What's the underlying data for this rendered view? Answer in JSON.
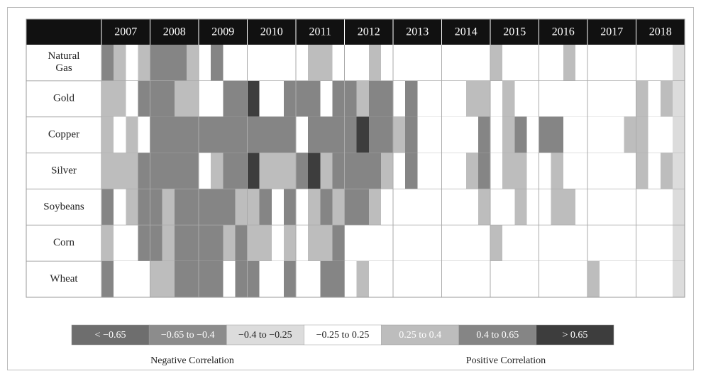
{
  "chart_data": {
    "type": "heatmap",
    "columns": [
      "2007",
      "2008",
      "2009",
      "2010",
      "2011",
      "2012",
      "2013",
      "2014",
      "2015",
      "2016",
      "2017",
      "2018"
    ],
    "series": [
      {
        "name": "Natural Gas",
        "values": [
          5,
          4,
          3,
          4,
          5,
          5,
          5,
          4,
          3,
          5,
          3,
          3,
          3,
          3,
          3,
          3,
          3,
          4,
          4,
          3,
          3,
          3,
          4,
          3,
          3,
          3,
          3,
          3,
          3,
          3,
          3,
          3,
          4,
          3,
          3,
          3,
          3,
          3,
          4,
          3,
          3,
          3,
          3,
          3,
          3,
          3,
          3,
          2
        ]
      },
      {
        "name": "Gold",
        "values": [
          4,
          4,
          3,
          5,
          5,
          5,
          4,
          4,
          3,
          3,
          5,
          5,
          6,
          3,
          3,
          5,
          5,
          5,
          3,
          5,
          5,
          4,
          5,
          5,
          3,
          5,
          3,
          3,
          3,
          3,
          4,
          4,
          3,
          4,
          3,
          3,
          3,
          3,
          3,
          3,
          3,
          3,
          3,
          3,
          4,
          3,
          4,
          2
        ]
      },
      {
        "name": "Copper",
        "values": [
          4,
          3,
          4,
          3,
          5,
          5,
          5,
          5,
          5,
          5,
          5,
          5,
          5,
          5,
          5,
          5,
          3,
          5,
          5,
          5,
          5,
          6,
          5,
          5,
          4,
          5,
          3,
          3,
          3,
          3,
          3,
          5,
          3,
          4,
          5,
          3,
          5,
          5,
          3,
          3,
          3,
          3,
          3,
          4,
          4,
          3,
          3,
          2
        ]
      },
      {
        "name": "Silver",
        "values": [
          4,
          4,
          4,
          5,
          5,
          5,
          5,
          5,
          3,
          4,
          5,
          5,
          6,
          4,
          4,
          4,
          5,
          6,
          4,
          5,
          5,
          5,
          5,
          4,
          3,
          5,
          3,
          3,
          3,
          3,
          4,
          5,
          3,
          4,
          4,
          3,
          3,
          4,
          3,
          3,
          3,
          3,
          3,
          3,
          4,
          3,
          4,
          2
        ]
      },
      {
        "name": "Soybeans",
        "values": [
          5,
          3,
          4,
          5,
          5,
          4,
          5,
          5,
          5,
          5,
          5,
          4,
          4,
          5,
          3,
          5,
          3,
          4,
          5,
          4,
          5,
          5,
          4,
          3,
          3,
          3,
          3,
          3,
          3,
          3,
          3,
          4,
          3,
          3,
          4,
          3,
          3,
          4,
          4,
          3,
          3,
          3,
          3,
          3,
          3,
          3,
          3,
          2
        ]
      },
      {
        "name": "Corn",
        "values": [
          4,
          3,
          3,
          5,
          5,
          4,
          5,
          5,
          5,
          5,
          4,
          5,
          4,
          4,
          3,
          4,
          3,
          4,
          4,
          5,
          3,
          3,
          3,
          3,
          3,
          3,
          3,
          3,
          3,
          3,
          3,
          3,
          4,
          3,
          3,
          3,
          3,
          3,
          3,
          3,
          3,
          3,
          3,
          3,
          3,
          3,
          3,
          2
        ]
      },
      {
        "name": "Wheat",
        "values": [
          5,
          3,
          3,
          3,
          4,
          4,
          5,
          5,
          5,
          5,
          3,
          5,
          5,
          3,
          3,
          5,
          3,
          3,
          5,
          5,
          3,
          4,
          3,
          3,
          3,
          3,
          3,
          3,
          3,
          3,
          3,
          3,
          3,
          3,
          3,
          3,
          3,
          3,
          3,
          3,
          4,
          3,
          3,
          3,
          3,
          3,
          3,
          2
        ]
      }
    ],
    "legend": [
      {
        "label": "< −0.65",
        "color": "#6e6e6e",
        "text_color": "#ffffff"
      },
      {
        "label": "−0.65 to −0.4",
        "color": "#8c8c8c",
        "text_color": "#ffffff"
      },
      {
        "label": "−0.4 to −0.25",
        "color": "#dcdcdc",
        "text_color": "#222222"
      },
      {
        "label": "−0.25 to 0.25",
        "color": "#ffffff",
        "text_color": "#222222"
      },
      {
        "label": "0.25 to 0.4",
        "color": "#bdbdbd",
        "text_color": "#ffffff"
      },
      {
        "label": "0.4 to 0.65",
        "color": "#858585",
        "text_color": "#ffffff"
      },
      {
        "label": "> 0.65",
        "color": "#3d3d3d",
        "text_color": "#ffffff"
      }
    ],
    "negative_label": "Negative Correlation",
    "positive_label": "Positive Correlation"
  }
}
